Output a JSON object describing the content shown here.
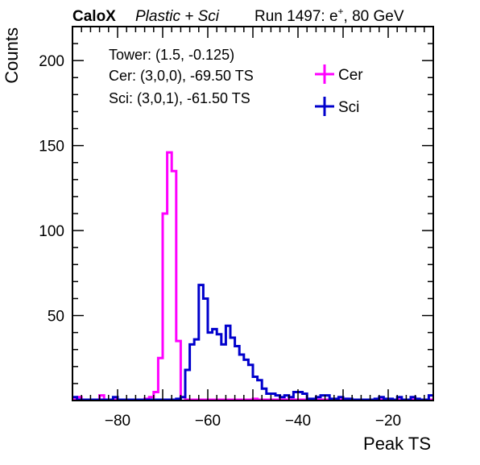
{
  "header": {
    "brand": "CaloX",
    "subtitle": "Plastic + Sci",
    "run_prefix": "Run 1497: e",
    "run_sup": "+",
    "run_suffix": ", 80 GeV"
  },
  "annotations": {
    "tower": "Tower: (1.5, -0.125)",
    "cer": "Cer: (3,0,0), -69.50 TS",
    "sci": "Sci: (3,0,1), -61.50 TS"
  },
  "colors": {
    "cer": "#ff00ff",
    "sci": "#0000cc",
    "axis": "#000000"
  },
  "chart_data": {
    "type": "histogram",
    "xlabel": "Peak TS",
    "ylabel": "Counts",
    "xlim": [
      -90,
      -10
    ],
    "ylim": [
      0,
      220
    ],
    "bin_width": 1,
    "xticks": [
      -80,
      -60,
      -40,
      -20
    ],
    "yticks": [
      50,
      100,
      150,
      200
    ],
    "legend_placement": "top-right",
    "grid": false,
    "series": [
      {
        "name": "Cer",
        "key": "cer",
        "bin_start": -90,
        "values": [
          0,
          2,
          0,
          0,
          0,
          0,
          3,
          0,
          0,
          0,
          0,
          0,
          0,
          0,
          0,
          0,
          1,
          2,
          5,
          25,
          110,
          146,
          135,
          35,
          2,
          0,
          0,
          0,
          0,
          0,
          0,
          0,
          0,
          0,
          0,
          0,
          0,
          0,
          0,
          0,
          1,
          0,
          0,
          0,
          0,
          0,
          0,
          0,
          0,
          0,
          0,
          0,
          0,
          0,
          0,
          0,
          0,
          0,
          0,
          0,
          1,
          0,
          0,
          0,
          0,
          0,
          0,
          0,
          0,
          0,
          0,
          0,
          0,
          0,
          0,
          0,
          0,
          0,
          0,
          0
        ]
      },
      {
        "name": "Sci",
        "key": "sci",
        "bin_start": -90,
        "values": [
          2,
          0,
          0,
          0,
          0,
          0,
          0,
          0,
          0,
          2,
          0,
          0,
          0,
          0,
          0,
          0,
          0,
          0,
          0,
          0,
          0,
          0,
          0,
          1,
          2,
          18,
          33,
          36,
          68,
          60,
          40,
          42,
          39,
          33,
          44,
          37,
          32,
          27,
          24,
          21,
          14,
          12,
          7,
          4,
          4,
          3,
          2,
          3,
          2,
          5,
          5,
          4,
          1,
          1,
          2,
          3,
          3,
          1,
          1,
          2,
          1,
          1,
          0,
          0,
          0,
          0,
          0,
          1,
          2,
          1,
          1,
          0,
          2,
          0,
          0,
          2,
          1,
          0,
          0,
          3
        ]
      }
    ]
  }
}
